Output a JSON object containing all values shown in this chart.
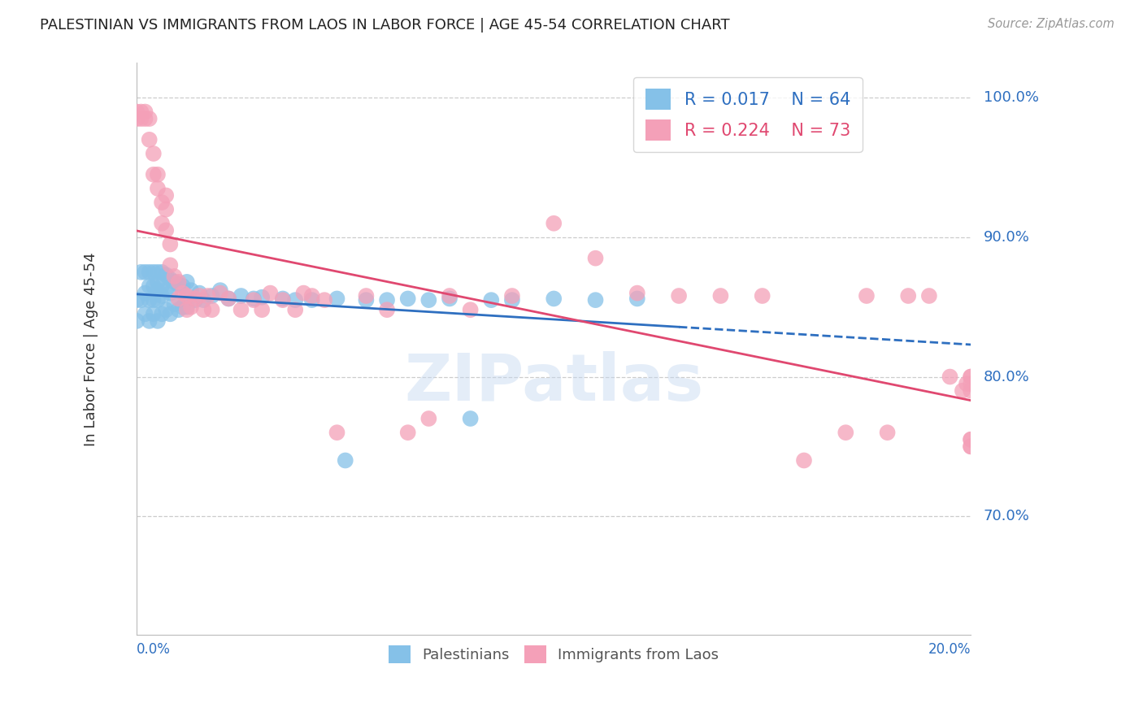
{
  "title": "PALESTINIAN VS IMMIGRANTS FROM LAOS IN LABOR FORCE | AGE 45-54 CORRELATION CHART",
  "source": "Source: ZipAtlas.com",
  "ylabel": "In Labor Force | Age 45-54",
  "watermark": "ZIPatlas",
  "xmin": 0.0,
  "xmax": 0.2,
  "ymin": 0.615,
  "ymax": 1.025,
  "blue_R": 0.017,
  "blue_N": 64,
  "pink_R": 0.224,
  "pink_N": 73,
  "blue_color": "#85C1E8",
  "pink_color": "#F4A0B8",
  "blue_line_color": "#2E6FC0",
  "pink_line_color": "#E04870",
  "grid_color": "#CCCCCC",
  "title_color": "#222222",
  "axis_label_color": "#2E6FC0",
  "blue_line_solid_end": 0.13,
  "blue_x": [
    0.0,
    0.0,
    0.001,
    0.001,
    0.002,
    0.002,
    0.002,
    0.003,
    0.003,
    0.003,
    0.003,
    0.004,
    0.004,
    0.004,
    0.004,
    0.005,
    0.005,
    0.005,
    0.005,
    0.005,
    0.006,
    0.006,
    0.006,
    0.006,
    0.007,
    0.007,
    0.007,
    0.008,
    0.008,
    0.008,
    0.009,
    0.009,
    0.01,
    0.01,
    0.011,
    0.011,
    0.012,
    0.012,
    0.013,
    0.014,
    0.015,
    0.016,
    0.018,
    0.02,
    0.022,
    0.025,
    0.028,
    0.03,
    0.035,
    0.038,
    0.042,
    0.048,
    0.05,
    0.055,
    0.06,
    0.065,
    0.07,
    0.075,
    0.08,
    0.085,
    0.09,
    0.1,
    0.11,
    0.12
  ],
  "blue_y": [
    0.855,
    0.84,
    0.875,
    0.855,
    0.875,
    0.86,
    0.845,
    0.875,
    0.865,
    0.855,
    0.84,
    0.875,
    0.865,
    0.855,
    0.845,
    0.875,
    0.868,
    0.862,
    0.855,
    0.84,
    0.875,
    0.865,
    0.858,
    0.845,
    0.873,
    0.862,
    0.848,
    0.87,
    0.86,
    0.845,
    0.868,
    0.852,
    0.866,
    0.848,
    0.865,
    0.85,
    0.868,
    0.85,
    0.862,
    0.855,
    0.86,
    0.855,
    0.858,
    0.862,
    0.856,
    0.858,
    0.856,
    0.857,
    0.856,
    0.855,
    0.855,
    0.856,
    0.74,
    0.855,
    0.855,
    0.856,
    0.855,
    0.856,
    0.77,
    0.855,
    0.855,
    0.856,
    0.855,
    0.856
  ],
  "pink_x": [
    0.0,
    0.0,
    0.001,
    0.001,
    0.002,
    0.002,
    0.003,
    0.003,
    0.004,
    0.004,
    0.005,
    0.005,
    0.006,
    0.006,
    0.007,
    0.007,
    0.007,
    0.008,
    0.008,
    0.009,
    0.01,
    0.01,
    0.011,
    0.012,
    0.012,
    0.013,
    0.014,
    0.015,
    0.016,
    0.017,
    0.018,
    0.02,
    0.022,
    0.025,
    0.028,
    0.03,
    0.032,
    0.035,
    0.038,
    0.04,
    0.042,
    0.045,
    0.048,
    0.055,
    0.06,
    0.065,
    0.07,
    0.075,
    0.08,
    0.09,
    0.1,
    0.11,
    0.12,
    0.13,
    0.14,
    0.15,
    0.16,
    0.17,
    0.175,
    0.18,
    0.185,
    0.19,
    0.195,
    0.198,
    0.199,
    0.2,
    0.2,
    0.2,
    0.2,
    0.2,
    0.2,
    0.2,
    0.2
  ],
  "pink_y": [
    0.99,
    0.985,
    0.99,
    0.985,
    0.99,
    0.985,
    0.985,
    0.97,
    0.96,
    0.945,
    0.945,
    0.935,
    0.925,
    0.91,
    0.93,
    0.92,
    0.905,
    0.895,
    0.88,
    0.872,
    0.868,
    0.856,
    0.86,
    0.858,
    0.848,
    0.85,
    0.856,
    0.858,
    0.848,
    0.858,
    0.848,
    0.86,
    0.856,
    0.848,
    0.855,
    0.848,
    0.86,
    0.855,
    0.848,
    0.86,
    0.858,
    0.855,
    0.76,
    0.858,
    0.848,
    0.76,
    0.77,
    0.858,
    0.848,
    0.858,
    0.91,
    0.885,
    0.86,
    0.858,
    0.858,
    0.858,
    0.74,
    0.76,
    0.858,
    0.76,
    0.858,
    0.858,
    0.8,
    0.79,
    0.795,
    0.8,
    0.79,
    0.755,
    0.75,
    0.8,
    0.795,
    0.755,
    0.75
  ]
}
